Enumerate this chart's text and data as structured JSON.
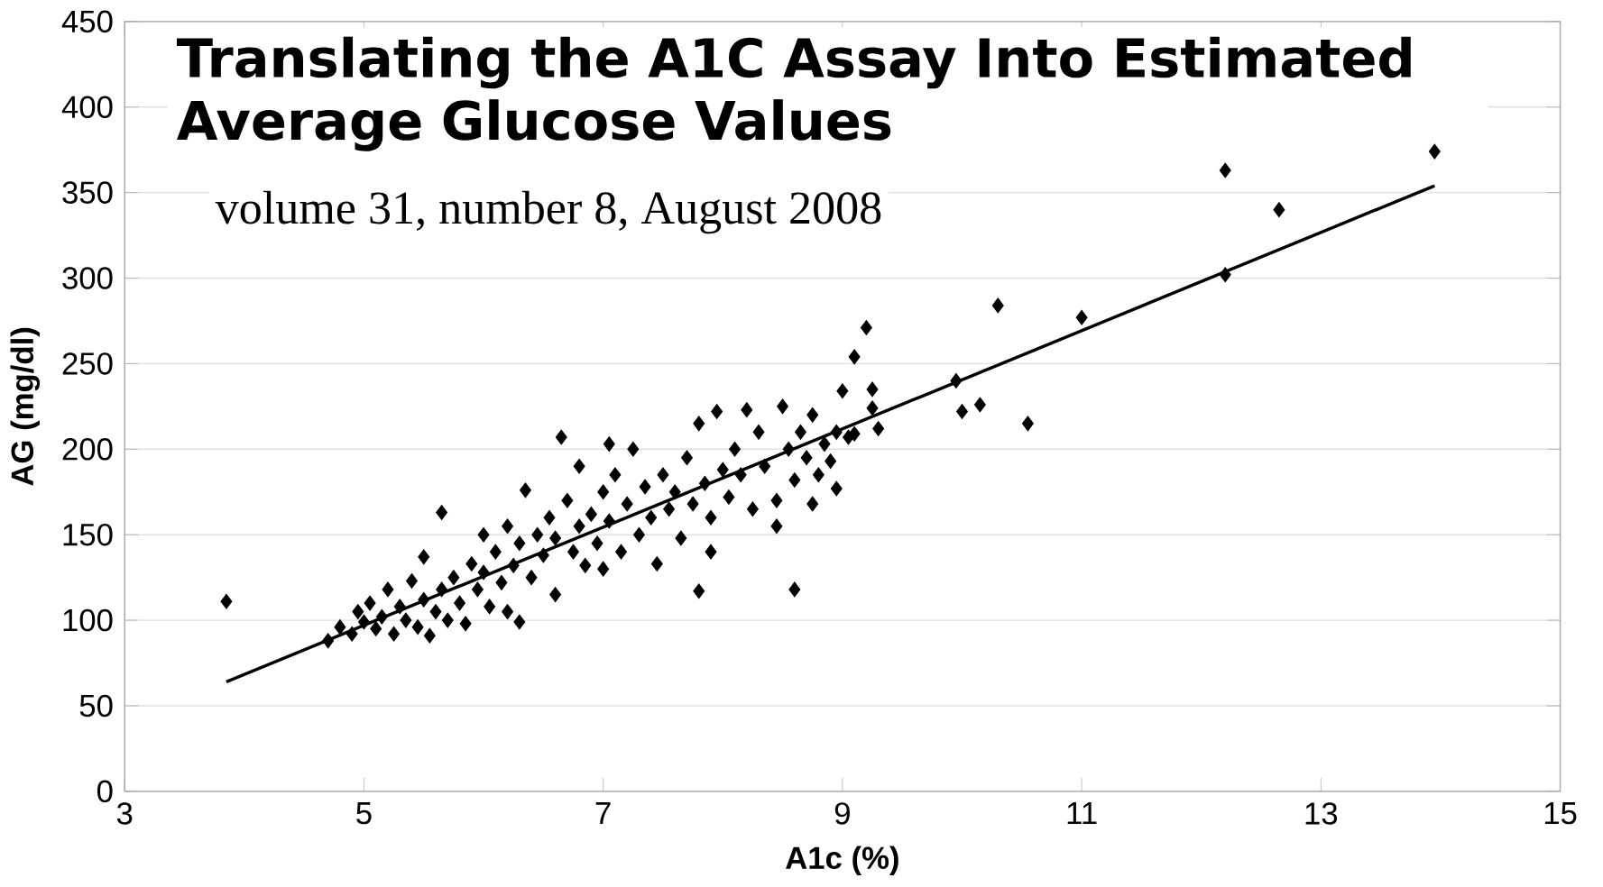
{
  "chart_data": {
    "type": "scatter",
    "title": "Translating the A1C Assay Into Estimated Average Glucose Values",
    "annotations": [
      "volume 31, number 8, August 2008"
    ],
    "xlabel": "A1c (%)",
    "ylabel": "AG (mg/dl)",
    "xlim": [
      3,
      15
    ],
    "xticks": [
      3,
      5,
      7,
      9,
      11,
      13,
      15
    ],
    "ylim": [
      0,
      450
    ],
    "yticks": [
      0,
      50,
      100,
      150,
      200,
      250,
      300,
      350,
      400,
      450
    ],
    "grid": "y",
    "marker": "diamond",
    "series": [
      {
        "color": "#000000",
        "x": [
          3.85,
          9.2,
          9.1,
          9.25,
          9.0,
          9.25,
          9.3,
          9.95,
          10.0,
          10.15,
          10.3,
          10.55,
          11.0,
          12.2,
          12.2,
          12.65,
          13.95,
          8.6,
          7.8,
          6.65,
          7.05,
          5.65,
          7.9,
          8.95,
          8.75,
          8.45,
          4.7,
          4.8,
          4.9,
          4.95,
          5.0,
          5.05,
          5.1,
          5.15,
          5.2,
          5.25,
          5.3,
          5.35,
          5.4,
          5.45,
          5.5,
          5.5,
          5.55,
          5.6,
          5.65,
          5.7,
          5.75,
          5.8,
          5.85,
          5.9,
          5.95,
          6.0,
          6.0,
          6.05,
          6.1,
          6.15,
          6.2,
          6.2,
          6.25,
          6.3,
          6.3,
          6.35,
          6.4,
          6.45,
          6.5,
          6.55,
          6.6,
          6.6,
          6.7,
          6.75,
          6.8,
          6.8,
          6.85,
          6.9,
          6.95,
          7.0,
          7.0,
          7.05,
          7.1,
          7.15,
          7.2,
          7.25,
          7.3,
          7.35,
          7.4,
          7.45,
          7.5,
          7.55,
          7.6,
          7.65,
          7.7,
          7.75,
          7.8,
          7.85,
          7.9,
          7.95,
          8.0,
          8.05,
          8.1,
          8.15,
          8.2,
          8.25,
          8.3,
          8.35,
          8.45,
          8.5,
          8.55,
          8.6,
          8.65,
          8.7,
          8.75,
          8.8,
          8.85,
          8.9,
          8.95,
          9.05,
          9.1
        ],
        "values": [
          111,
          271,
          254,
          235,
          234,
          224,
          212,
          240,
          222,
          226,
          284,
          215,
          277,
          363,
          302,
          340,
          374,
          118,
          117,
          207,
          203,
          163,
          140,
          177,
          168,
          155,
          88,
          96,
          92,
          105,
          99,
          110,
          95,
          102,
          118,
          92,
          108,
          100,
          123,
          96,
          112,
          137,
          91,
          105,
          118,
          100,
          125,
          110,
          98,
          133,
          118,
          150,
          128,
          108,
          140,
          122,
          105,
          155,
          132,
          99,
          145,
          176,
          125,
          150,
          138,
          160,
          115,
          148,
          170,
          140,
          190,
          155,
          132,
          162,
          145,
          175,
          130,
          158,
          185,
          140,
          168,
          200,
          150,
          178,
          160,
          133,
          185,
          165,
          175,
          148,
          195,
          168,
          215,
          180,
          160,
          222,
          188,
          172,
          200,
          185,
          223,
          165,
          210,
          190,
          170,
          225,
          200,
          182,
          210,
          195,
          220,
          185,
          203,
          193,
          210,
          207,
          209
        ]
      },
      {
        "type": "line",
        "color": "#000000",
        "marker": "none",
        "line_style": "solid",
        "x": [
          3.85,
          13.95
        ],
        "values": [
          64,
          354
        ]
      }
    ]
  }
}
